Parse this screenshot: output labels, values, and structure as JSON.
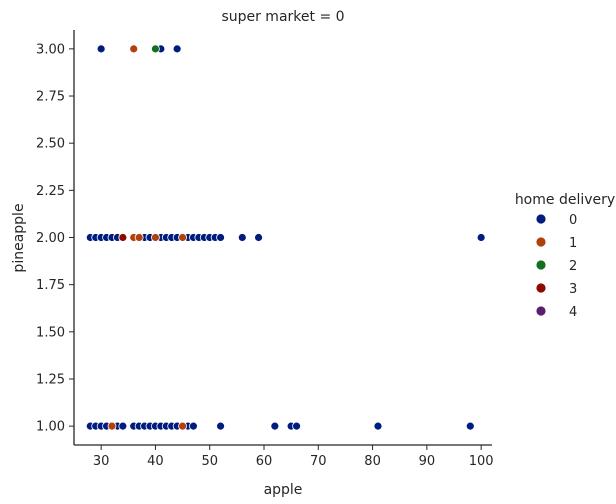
{
  "chart_data": {
    "type": "scatter",
    "title": "super market = 0",
    "xlabel": "apple",
    "ylabel": "pineapple",
    "xlim": [
      25,
      102
    ],
    "ylim": [
      0.9,
      3.1
    ],
    "xticks": [
      30,
      40,
      50,
      60,
      70,
      80,
      90,
      100
    ],
    "yticks": [
      1.0,
      1.25,
      1.5,
      1.75,
      2.0,
      2.25,
      2.5,
      2.75,
      3.0
    ],
    "xtick_labels": [
      "30",
      "40",
      "50",
      "60",
      "70",
      "80",
      "90",
      "100"
    ],
    "ytick_labels": [
      "1.00",
      "1.25",
      "1.50",
      "1.75",
      "2.00",
      "2.25",
      "2.50",
      "2.75",
      "3.00"
    ],
    "grid": false,
    "legend": {
      "title": "home delivery",
      "placement": "right",
      "entries": [
        {
          "label": "0",
          "color": "#001c7f"
        },
        {
          "label": "1",
          "color": "#b1400d"
        },
        {
          "label": "2",
          "color": "#12711c"
        },
        {
          "label": "3",
          "color": "#8c0800"
        },
        {
          "label": "4",
          "color": "#591e71"
        }
      ]
    },
    "series": [
      {
        "name": "0",
        "color": "#001c7f",
        "x": [
          30,
          41,
          44,
          28,
          29,
          30,
          31,
          32,
          33,
          34,
          36,
          38,
          39,
          41,
          42,
          43,
          44,
          46,
          47,
          48,
          49,
          50,
          51,
          52,
          56,
          59,
          100,
          28,
          29,
          30,
          31,
          33,
          34,
          36,
          37,
          38,
          39,
          40,
          41,
          42,
          43,
          44,
          46,
          47,
          52,
          62,
          65,
          66,
          81,
          98
        ],
        "y": [
          3,
          3,
          3,
          2,
          2,
          2,
          2,
          2,
          2,
          2,
          2,
          2,
          2,
          2,
          2,
          2,
          2,
          2,
          2,
          2,
          2,
          2,
          2,
          2,
          2,
          2,
          2,
          1,
          1,
          1,
          1,
          1,
          1,
          1,
          1,
          1,
          1,
          1,
          1,
          1,
          1,
          1,
          1,
          1,
          1,
          1,
          1,
          1,
          1,
          1
        ]
      },
      {
        "name": "1",
        "color": "#b1400d",
        "x": [
          36,
          36,
          37,
          40,
          45,
          32,
          45
        ],
        "y": [
          3,
          2,
          2,
          2,
          2,
          1,
          1
        ]
      },
      {
        "name": "2",
        "color": "#12711c",
        "x": [
          40
        ],
        "y": [
          3
        ]
      },
      {
        "name": "3",
        "color": "#8c0800",
        "x": [
          34
        ],
        "y": [
          2
        ]
      },
      {
        "name": "4",
        "color": "#591e71",
        "x": [],
        "y": []
      }
    ]
  }
}
